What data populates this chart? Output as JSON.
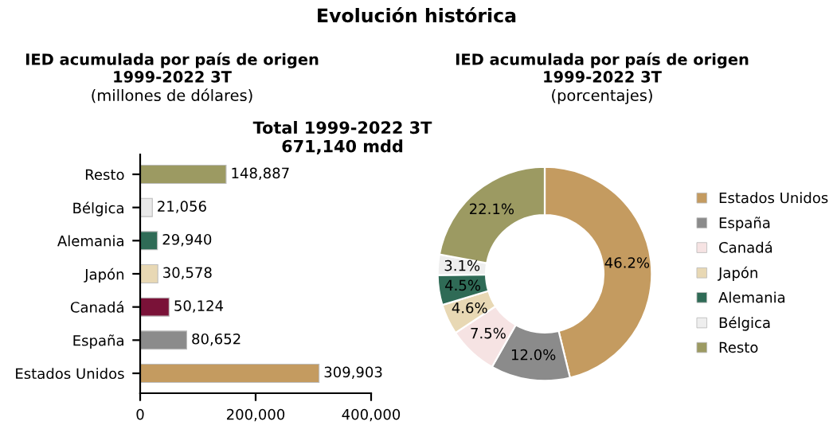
{
  "chart_data": [
    {
      "type": "bar",
      "orientation": "horizontal",
      "title": "IED acumulada por país de origen\n1999-2022 3T",
      "subtitle": "(millones de dólares)",
      "annotations": [
        "Evolución histórica",
        "Total 1999-2022 3T\n671,140 mdd"
      ],
      "categories": [
        "Resto",
        "Bélgica",
        "Alemania",
        "Japón",
        "Canadá",
        "España",
        "Estados Unidos"
      ],
      "values": [
        148887,
        21056,
        29940,
        30578,
        50124,
        80652,
        309903
      ],
      "value_labels": [
        "148,887",
        "21,056",
        "29,940",
        "30,578",
        "50,124",
        "80,652",
        "309,903"
      ],
      "colors": [
        "#9c9a62",
        "#e9e9e9",
        "#2f6b56",
        "#e8d8b4",
        "#7a1238",
        "#8b8b8b",
        "#c49b60"
      ],
      "xlim": [
        0,
        400000
      ],
      "xticks": [
        0,
        {
          "value": 200000,
          "label": "200,000"
        },
        {
          "value": 400000,
          "label": "400,000"
        }
      ],
      "grid": false
    },
    {
      "type": "donut",
      "title": "IED acumulada por país de origen\n1999-2022 3T",
      "subtitle": "(porcentajes)",
      "categories": [
        "Estados Unidos",
        "España",
        "Canadá",
        "Japón",
        "Alemania",
        "Bélgica",
        "Resto"
      ],
      "values": [
        46.2,
        12.0,
        7.5,
        4.6,
        4.5,
        3.1,
        22.1
      ],
      "value_labels": [
        "46.2%",
        "12.0%",
        "7.5%",
        "4.6%",
        "4.5%",
        "3.1%",
        "22.1%"
      ],
      "colors": [
        "#c49b60",
        "#8b8b8b",
        "#f6e3e3",
        "#e8d8b4",
        "#2f6b56",
        "#eeeeee",
        "#9c9a62"
      ],
      "legend": "right"
    }
  ]
}
